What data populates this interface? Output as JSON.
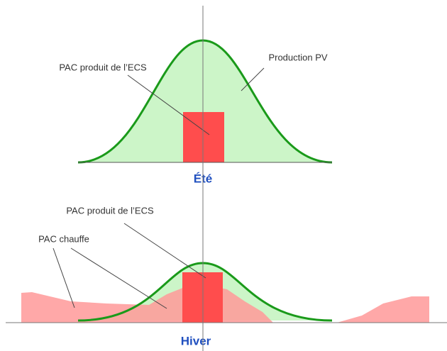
{
  "summer": {
    "title": "Été",
    "ecs_label": "PAC produit de l’ECS",
    "pv_label": "Production PV"
  },
  "winter": {
    "title": "Hiver",
    "ecs_label": "PAC produit de l’ECS",
    "heating_label": "PAC chauffe"
  }
}
